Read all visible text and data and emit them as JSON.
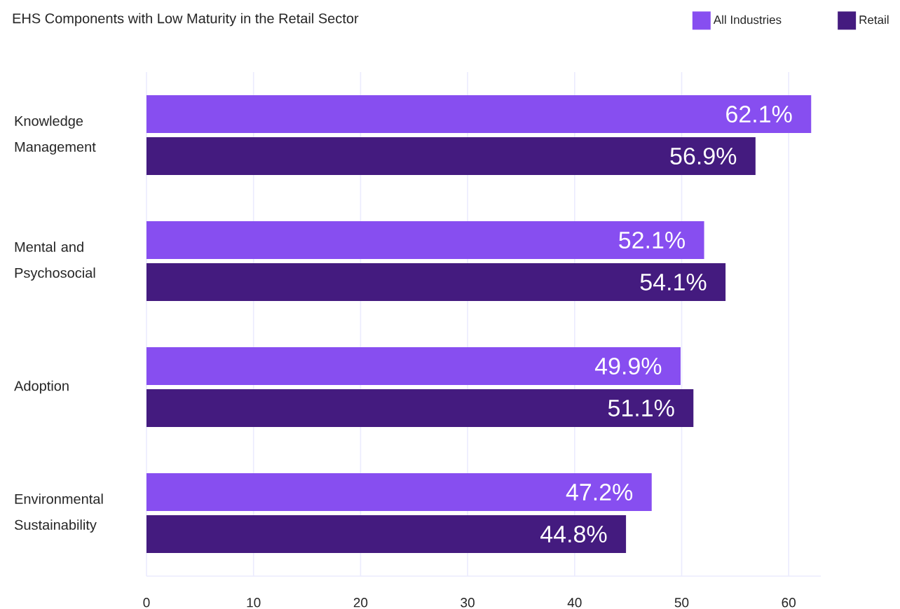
{
  "chart_data": {
    "type": "bar",
    "orientation": "horizontal",
    "title": "EHS Components with Low Maturity in the Retail Sector",
    "categories": [
      "Knowledge Management",
      "Mental and Psychosocial",
      "Adoption",
      "Environmental Sustainability"
    ],
    "series": [
      {
        "name": "All Industries",
        "color": "#874ef0",
        "values": [
          62.1,
          52.1,
          49.9,
          47.2
        ],
        "value_labels": [
          "62.1%",
          "52.1%",
          "49.9%",
          "47.2%"
        ]
      },
      {
        "name": "Retail",
        "color": "#441b7f",
        "values": [
          56.9,
          54.1,
          51.1,
          44.8
        ],
        "value_labels": [
          "56.9%",
          "54.1%",
          "51.1%",
          "44.8%"
        ]
      }
    ],
    "xlim": [
      0,
      63
    ],
    "xticks": [
      0,
      10,
      20,
      30,
      40,
      50,
      60
    ],
    "grid": "x",
    "legend": "top right"
  }
}
